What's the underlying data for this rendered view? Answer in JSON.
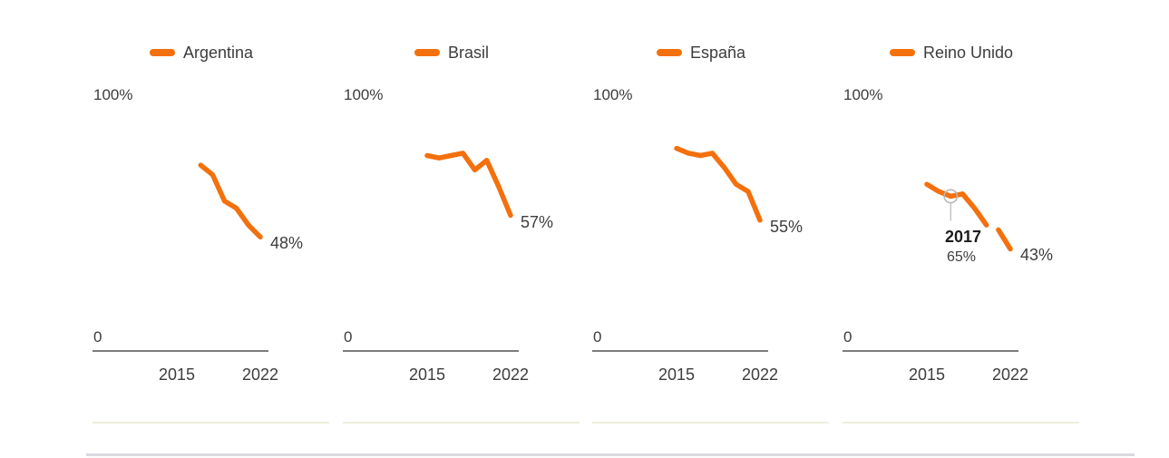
{
  "colors": {
    "line": "#f4700d",
    "text": "#3d3d3d",
    "annotation_text": "#1c1c1c",
    "axis": "#7d7d7d",
    "separator": "#efeeda",
    "marker_stroke": "#b8b8b8",
    "leader_line": "#c4c4c4"
  },
  "chart_data": {
    "type": "line",
    "unit": "%",
    "ylim": [
      0,
      100
    ],
    "ymax_label": "100%",
    "ybase_label": "0",
    "x_ticks": [
      "2015",
      "2022"
    ],
    "x_tick_years": [
      2015,
      2022
    ],
    "grid": false,
    "legend_position": "top",
    "series": [
      {
        "name": "Argentina",
        "years": [
          2017,
          2018,
          2019,
          2020,
          2021,
          2022
        ],
        "values": [
          78,
          74,
          63,
          60,
          53,
          48
        ],
        "end_label": "48%"
      },
      {
        "name": "Brasil",
        "years": [
          2015,
          2016,
          2017,
          2018,
          2019,
          2020,
          2021,
          2022
        ],
        "values": [
          82,
          81,
          82,
          83,
          76,
          80,
          69,
          57
        ],
        "end_label": "57%"
      },
      {
        "name": "España",
        "years": [
          2015,
          2016,
          2017,
          2018,
          2019,
          2020,
          2021,
          2022
        ],
        "values": [
          85,
          83,
          82,
          83,
          77,
          70,
          67,
          55
        ],
        "end_label": "55%"
      },
      {
        "name": "Reino Unido",
        "years": [
          2015,
          2016,
          2017,
          2018,
          2019,
          2020,
          2021,
          2022
        ],
        "values": [
          70,
          67,
          65,
          66,
          60,
          53,
          51,
          43
        ],
        "end_label": "43%",
        "gap_after_year": 2020,
        "annotation": {
          "year": 2017,
          "value": 65,
          "label_year": "2017",
          "label_value": "65%"
        }
      }
    ]
  }
}
